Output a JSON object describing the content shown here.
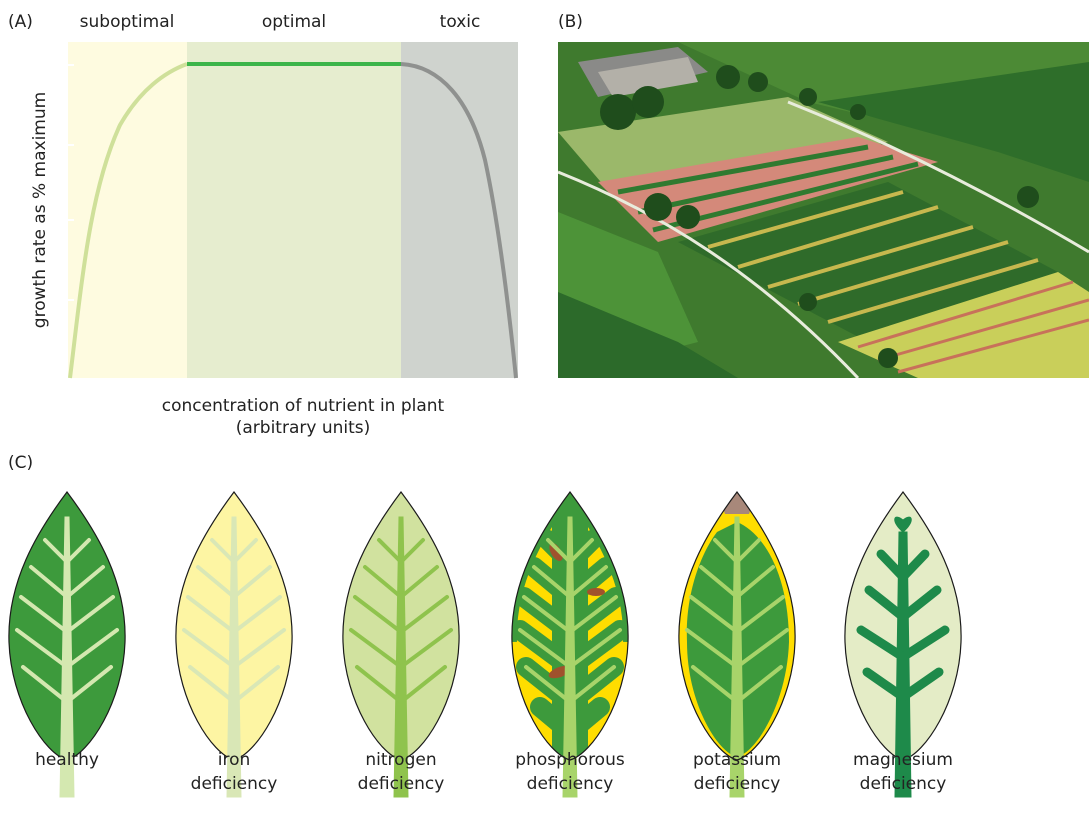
{
  "panel_a": {
    "label": "(A)",
    "regions": [
      "suboptimal",
      "optimal",
      "toxic"
    ],
    "y_axis_label": "growth rate as % maximum",
    "x_axis_label": [
      "concentration of nutrient in plant",
      "(arbitrary units)"
    ]
  },
  "panel_b": {
    "label": "(B)"
  },
  "panel_c": {
    "label": "(C)",
    "leaves": [
      {
        "label": [
          "healthy"
        ]
      },
      {
        "label": [
          "iron",
          "deficiency"
        ]
      },
      {
        "label": [
          "nitrogen",
          "deficiency"
        ]
      },
      {
        "label": [
          "phosphorous",
          "deficiency"
        ]
      },
      {
        "label": [
          "potassium",
          "deficiency"
        ]
      },
      {
        "label": [
          "magnesium",
          "deficiency"
        ]
      }
    ]
  }
}
